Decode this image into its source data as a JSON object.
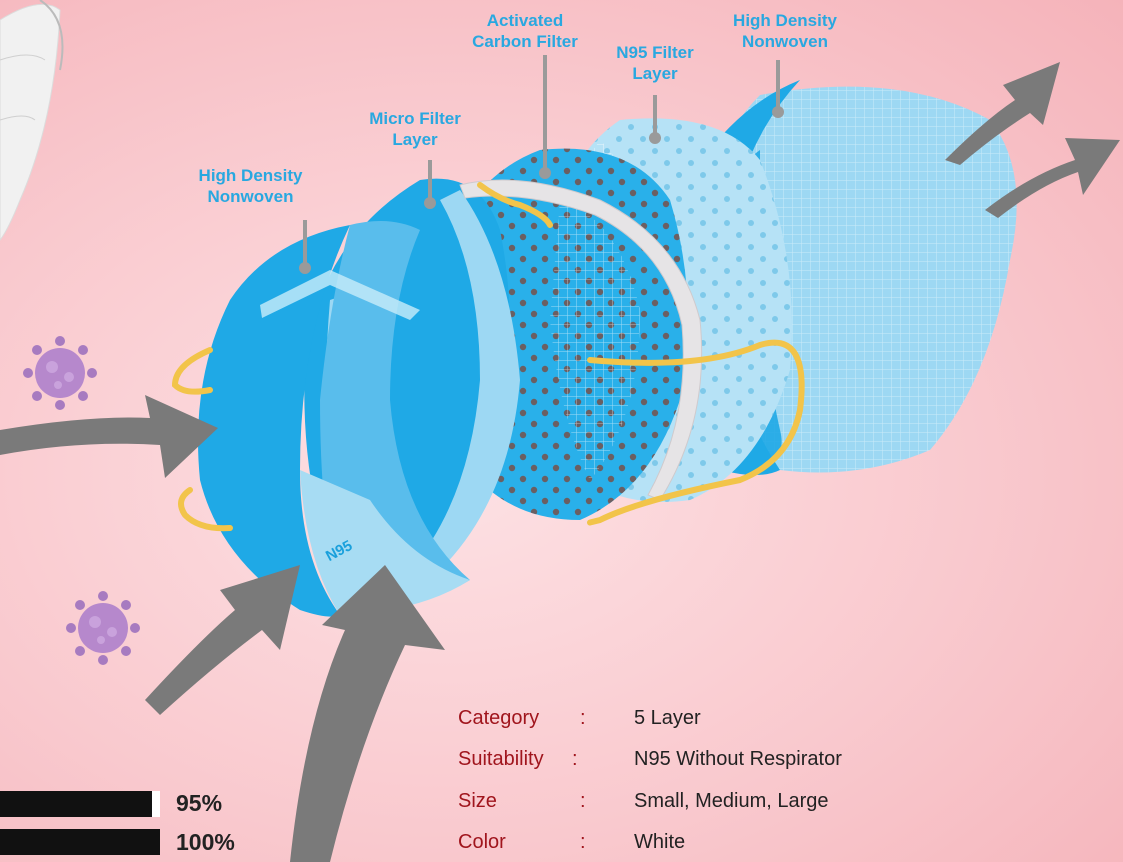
{
  "labels": {
    "layer1": "High Density\nNonwoven",
    "layer2": "Micro Filter\nLayer",
    "layer3": "Activated\nCarbon Filter",
    "layer4": "N95 Filter\nLayer",
    "layer5": "High Density\nNonwoven"
  },
  "mask_mark": "N95",
  "specs": [
    {
      "key": "Category",
      "colon": ":",
      "value": "5 Layer"
    },
    {
      "key": "Suitability",
      "colon": ":",
      "value": "N95 Without Respirator"
    },
    {
      "key": "Size",
      "colon": ":",
      "value": "Small, Medium, Large"
    },
    {
      "key": "Color",
      "colon": ":",
      "value": "White"
    }
  ],
  "bars": [
    {
      "label": "95%",
      "value": 0.95
    },
    {
      "label": "100%",
      "value": 1.0
    }
  ],
  "colors": {
    "label_blue": "#29a8e0",
    "spec_key": "#a0151d",
    "layer_blue": "#1fa9e6",
    "layer_light": "#8fd3f2",
    "arrow_gray": "#7a7a7a",
    "virus_purple": "#a77bc0"
  }
}
